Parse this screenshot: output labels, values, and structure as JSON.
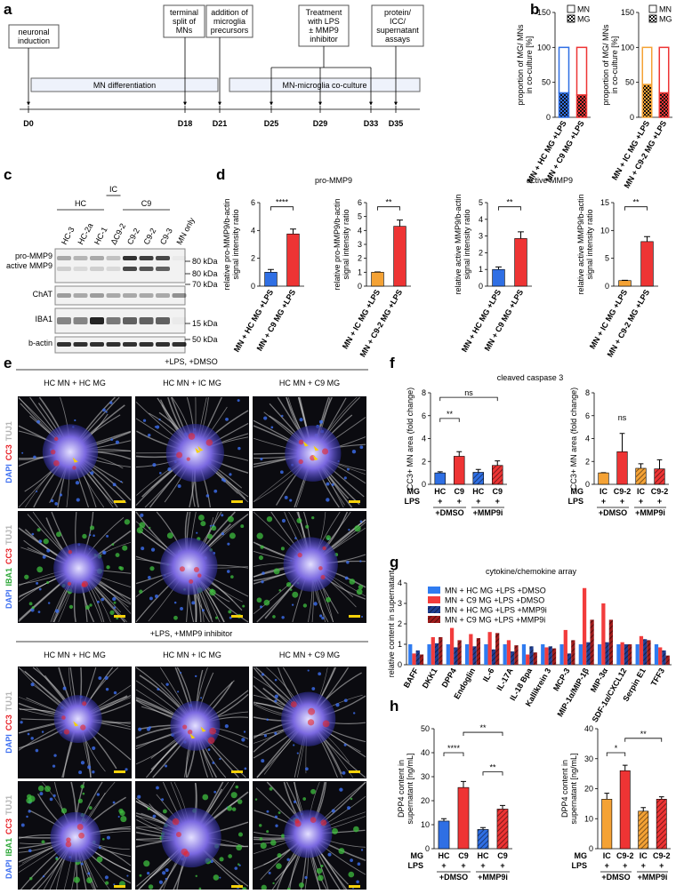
{
  "panel_labels": [
    "a",
    "b",
    "c",
    "d",
    "e",
    "f",
    "g",
    "h"
  ],
  "timeline": {
    "events": [
      [
        "neuronal",
        "induction"
      ],
      [
        "terminal",
        "split of",
        "MNs"
      ],
      [
        "addition of",
        "microglia",
        "precursors"
      ],
      [
        "Treatment",
        "with LPS",
        "± MMP9",
        "inhibitor"
      ],
      [
        "protein/",
        "ICC/",
        "supernatant",
        "assays"
      ]
    ],
    "phases": [
      "MN differentiation",
      "MN-microglia co-culture"
    ],
    "days": [
      "D0",
      "D18",
      "D21",
      "D25",
      "D29",
      "D33",
      "D35"
    ]
  },
  "blot": {
    "groups": [
      "HC",
      "IC",
      "C9"
    ],
    "lanes": [
      "HC-3",
      "HC-2a",
      "HC-1",
      "ΔC9-2",
      "C9-2",
      "C9-2",
      "C9-3",
      "MN only"
    ],
    "rows": [
      "pro-MMP9",
      "active MMP9",
      "ChAT",
      "IBA1",
      "b-actin"
    ],
    "markers": [
      "80 kDa",
      "80 kDa",
      "70 kDa",
      "15 kDa",
      "50 kDa"
    ]
  },
  "images": {
    "blocks": [
      {
        "title": "+LPS, +DMSO",
        "columns": [
          "HC MN + HC MG",
          "HC MN + IC MG",
          "HC MN + C9 MG"
        ]
      },
      {
        "title": "+LPS, +MMP9 inhibitor",
        "columns": [
          "HC MN + HC MG",
          "HC MN + IC MG",
          "HC MN + C9 MG"
        ]
      }
    ],
    "channels": [
      [
        {
          "label": "DAPI",
          "color": "#3d6ff0"
        },
        {
          "label": "CC3",
          "color": "#e8242a"
        },
        {
          "label": "TUJ1",
          "color": "#b5b5b5"
        }
      ],
      [
        {
          "label": "DAPI",
          "color": "#3d6ff0"
        },
        {
          "label": "IBA1",
          "color": "#2fa83a"
        },
        {
          "label": "CC3",
          "color": "#e8242a"
        },
        {
          "label": "TUJ1",
          "color": "#b5b5b5"
        }
      ]
    ]
  },
  "chart_data": [
    {
      "type": "stacked_bar",
      "ylabel": [
        "proportion of MG/ MNs",
        "in co-culture [%]"
      ],
      "categories": [
        "MN + HC MG +LPS",
        "MN + C9 MG +LPS"
      ],
      "colors": [
        "#2f6fe4",
        "#ee3434"
      ],
      "series": [
        {
          "name": "MN",
          "values": [
            65,
            68
          ]
        },
        {
          "name": "MG",
          "values": [
            35,
            32
          ],
          "pattern": "checker"
        }
      ],
      "ylim": [
        0,
        150
      ],
      "yticks": [
        0,
        50,
        100,
        150
      ],
      "legend": "upper right"
    },
    {
      "type": "stacked_bar",
      "ylabel": [
        "proportion of MG/ MNs",
        "in co-culture [%]"
      ],
      "categories": [
        "MN + IC MG +LPS",
        "MN + C9-2 MG +LPS"
      ],
      "colors": [
        "#f4a235",
        "#ee3434"
      ],
      "series": [
        {
          "name": "MN",
          "values": [
            53,
            65
          ]
        },
        {
          "name": "MG",
          "values": [
            47,
            35
          ],
          "pattern": "checker"
        }
      ],
      "ylim": [
        0,
        150
      ],
      "yticks": [
        0,
        50,
        100,
        150
      ],
      "legend": "upper right"
    },
    {
      "type": "bar",
      "title": "pro-MMP9",
      "ylabel": [
        "relative pro-MMP9/b-actin",
        "signal intensity ratio"
      ],
      "categories": [
        "MN + HC MG +LPS",
        "MN + C9 MG +LPS"
      ],
      "values": [
        1.0,
        3.75
      ],
      "errors": [
        0.2,
        0.35
      ],
      "colors": [
        "#2f6fe4",
        "#ee3434"
      ],
      "ylim": [
        0,
        6
      ],
      "yticks": [
        0,
        2,
        4,
        6
      ],
      "annotations": [
        "****"
      ]
    },
    {
      "type": "bar",
      "ylabel": [
        "relative pro-MMP9/b-actin",
        "signal intensity ratio"
      ],
      "categories": [
        "MN + IC MG +LPS",
        "MN + C9-2 MG +LPS"
      ],
      "values": [
        1.0,
        4.3
      ],
      "errors": [
        0.02,
        0.45
      ],
      "colors": [
        "#f4a235",
        "#ee3434"
      ],
      "ylim": [
        0,
        6
      ],
      "yticks": [
        0,
        1,
        2,
        3,
        4,
        5,
        6
      ],
      "annotations": [
        "**"
      ]
    },
    {
      "type": "bar",
      "title": "active MMP9",
      "ylabel": [
        "relative active MMP9/b-actin",
        "signal intensity ratio"
      ],
      "categories": [
        "MN + HC MG +LPS",
        "MN + C9 MG +LPS"
      ],
      "values": [
        1.0,
        2.85
      ],
      "errors": [
        0.15,
        0.4
      ],
      "colors": [
        "#2f6fe4",
        "#ee3434"
      ],
      "ylim": [
        0,
        5
      ],
      "yticks": [
        0,
        1,
        2,
        3,
        4,
        5
      ],
      "annotations": [
        "**"
      ]
    },
    {
      "type": "bar",
      "ylabel": [
        "relative active MMP9/b-actin",
        "signal intensity ratio"
      ],
      "categories": [
        "MN + IC MG +LPS",
        "MN + C9-2 MG +LPS"
      ],
      "values": [
        1.0,
        8.0
      ],
      "errors": [
        0.05,
        0.9
      ],
      "colors": [
        "#f4a235",
        "#ee3434"
      ],
      "ylim": [
        0,
        15
      ],
      "yticks": [
        0,
        5,
        10,
        15
      ],
      "annotations": [
        "**"
      ]
    },
    {
      "type": "bar",
      "title": "cleaved caspase 3",
      "ylabel": [
        "CC3+ MN area (fold change)"
      ],
      "row_labels": [
        "MG",
        "LPS"
      ],
      "categories": [
        "HC",
        "C9",
        "HC",
        "C9"
      ],
      "lps": [
        "+",
        "+",
        "+",
        "+"
      ],
      "groups": [
        "+DMSO",
        "+MMP9i"
      ],
      "values": [
        1.0,
        2.45,
        1.05,
        1.65
      ],
      "errors": [
        0.1,
        0.4,
        0.25,
        0.4
      ],
      "colors": [
        "#2f6fe4",
        "#ee3434",
        "#2f6fe4",
        "#ee3434"
      ],
      "hatch": [
        false,
        false,
        true,
        true
      ],
      "ylim": [
        0,
        8
      ],
      "yticks": [
        0,
        2,
        4,
        6,
        8
      ],
      "annotations": [
        "ns",
        "**"
      ]
    },
    {
      "type": "bar",
      "ylabel": [
        "CC3+ MN area (fold change)"
      ],
      "row_labels": [
        "MG",
        "LPS"
      ],
      "categories": [
        "IC",
        "C9-2",
        "IC",
        "C9-2"
      ],
      "lps": [
        "+",
        "+",
        "+",
        "+"
      ],
      "groups": [
        "+DMSO",
        "+MMP9i"
      ],
      "values": [
        1.0,
        2.85,
        1.4,
        1.35
      ],
      "errors": [
        0.02,
        1.6,
        0.4,
        0.8
      ],
      "colors": [
        "#f4a235",
        "#ee3434",
        "#f4a235",
        "#ee3434"
      ],
      "hatch": [
        false,
        false,
        true,
        true
      ],
      "ylim": [
        0,
        8
      ],
      "yticks": [
        0,
        2,
        4,
        6,
        8
      ],
      "annotations": [
        "ns"
      ]
    },
    {
      "type": "grouped_bar",
      "title": "cytokine/chemokine array",
      "ylabel": [
        "relative content in supernatant"
      ],
      "categories": [
        "BAFF",
        "DKK1",
        "DPP4",
        "Endoglin",
        "IL-6",
        "IL-17A",
        "IL-18 Bpa",
        "Kallikrein 3",
        "MCP-3",
        "MIP-1α/MIP-1β",
        "MIP-3α",
        "SDF-1α/CXCL12",
        "Serpin E1",
        "TFF3"
      ],
      "series": [
        {
          "name": "MN + HC MG +LPS +DMSO",
          "color": "#2f7bf0",
          "values": [
            1.0,
            1.0,
            1.0,
            1.0,
            1.0,
            1.0,
            1.0,
            1.0,
            1.0,
            1.0,
            1.0,
            1.0,
            1.0,
            1.0
          ]
        },
        {
          "name": "MN + C9 MG +LPS +DMSO",
          "color": "#f23c3c",
          "values": [
            0.55,
            1.35,
            1.8,
            1.5,
            1.6,
            1.2,
            0.5,
            0.85,
            1.7,
            3.75,
            3.0,
            1.1,
            1.4,
            0.85
          ]
        },
        {
          "name": "MN + HC MG +LPS +MMP9i",
          "color": "#1e3f94",
          "hatch": true,
          "values": [
            0.7,
            1.05,
            0.85,
            0.9,
            0.75,
            0.65,
            0.9,
            0.9,
            0.55,
            1.1,
            1.1,
            1.0,
            1.25,
            0.7
          ]
        },
        {
          "name": "MN + C9 MG +LPS +MMP9i",
          "color": "#a01c1c",
          "hatch": true,
          "values": [
            0.5,
            1.35,
            1.2,
            1.3,
            1.55,
            0.95,
            0.6,
            0.8,
            1.2,
            2.2,
            2.2,
            1.0,
            1.2,
            0.45
          ]
        }
      ],
      "ylim": [
        0,
        4
      ],
      "yticks": [
        0,
        1,
        2,
        3,
        4
      ],
      "legend": "upper left"
    },
    {
      "type": "bar",
      "ylabel": [
        "DPP4 content in",
        "supernatant [ng/mL]"
      ],
      "row_labels": [
        "MG",
        "LPS"
      ],
      "categories": [
        "HC",
        "C9",
        "HC",
        "C9"
      ],
      "lps": [
        "+",
        "+",
        "+",
        "+"
      ],
      "groups": [
        "+DMSO",
        "+MMP9i"
      ],
      "values": [
        11.5,
        25.5,
        8.0,
        16.5
      ],
      "errors": [
        1.0,
        2.5,
        0.8,
        1.5
      ],
      "colors": [
        "#2f6fe4",
        "#ee3434",
        "#2f6fe4",
        "#ee3434"
      ],
      "hatch": [
        false,
        false,
        true,
        true
      ],
      "ylim": [
        0,
        50
      ],
      "yticks": [
        0,
        10,
        20,
        30,
        40,
        50
      ],
      "annotations": [
        "****",
        "**",
        "**"
      ]
    },
    {
      "type": "bar",
      "ylabel": [
        "DPP4 content in",
        "supernatant [ng/mL]"
      ],
      "row_labels": [
        "MG",
        "LPS"
      ],
      "categories": [
        "IC",
        "C9-2",
        "IC",
        "C9-2"
      ],
      "lps": [
        "+",
        "+",
        "+",
        "+"
      ],
      "groups": [
        "+DMSO",
        "+MMP9i"
      ],
      "values": [
        16.5,
        26.0,
        12.5,
        16.5
      ],
      "errors": [
        2.0,
        1.8,
        1.2,
        0.8
      ],
      "colors": [
        "#f4a235",
        "#ee3434",
        "#f4a235",
        "#ee3434"
      ],
      "hatch": [
        false,
        false,
        true,
        true
      ],
      "ylim": [
        0,
        40
      ],
      "yticks": [
        0,
        10,
        20,
        30,
        40
      ],
      "annotations": [
        "*",
        "**"
      ]
    }
  ]
}
